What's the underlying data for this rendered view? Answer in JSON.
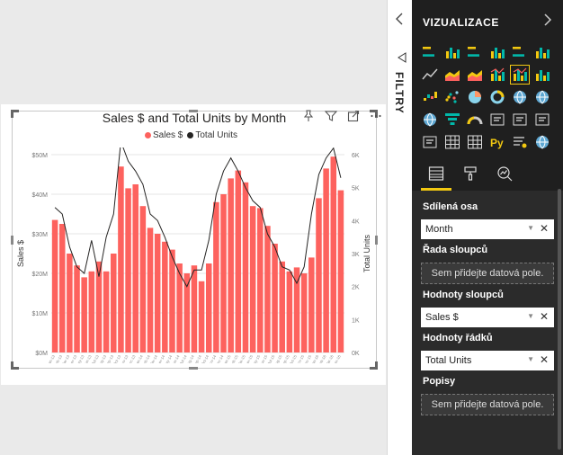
{
  "visual": {
    "title": "Sales $ and Total Units by Month",
    "legend": [
      {
        "name": "Sales $",
        "color": "#fd625e"
      },
      {
        "name": "Total Units",
        "color": "#252423"
      }
    ],
    "header_icons": [
      "pin-icon",
      "filter-icon",
      "focus-mode-icon",
      "more-options-icon"
    ]
  },
  "chart_data": {
    "type": "bar",
    "xlabel": "",
    "ylabel": "Sales $",
    "y2label": "Total Units",
    "ylim": [
      0,
      50
    ],
    "y2lim": [
      0,
      6
    ],
    "y_ticks": [
      "$0M",
      "$10M",
      "$20M",
      "$30M",
      "$40M",
      "$50M"
    ],
    "y2_ticks": [
      "0K",
      "1K",
      "2K",
      "3K",
      "4K",
      "5K",
      "6K"
    ],
    "categories": [
      "Jan-13",
      "Feb-13",
      "Mar-13",
      "Apr-13",
      "May-13",
      "Jun-13",
      "Jul-13",
      "Aug-13",
      "Sep-13",
      "Oct-13",
      "Nov-13",
      "Dec-13",
      "Jan-14",
      "Feb-14",
      "Mar-14",
      "Apr-14",
      "May-14",
      "Jun-14",
      "Jul-14",
      "Aug-14",
      "Sep-14",
      "Oct-14",
      "Nov-14",
      "Dec-14",
      "Jan-15",
      "Feb-15",
      "Mar-15",
      "Apr-15",
      "May-15",
      "Jun-15",
      "Jul-15",
      "Aug-15",
      "Sep-15",
      "Oct-15",
      "Nov-15",
      "Dec-15",
      "Jan-16",
      "Feb-16",
      "Mar-16",
      "Apr-16"
    ],
    "series": [
      {
        "name": "Sales $",
        "kind": "bar",
        "color": "#fd625e",
        "values": [
          33.5,
          32.5,
          25,
          22,
          19,
          20.5,
          23,
          20.5,
          25,
          47,
          41.5,
          42.5,
          37,
          31.5,
          30,
          28,
          26,
          22.5,
          20,
          22,
          18,
          22.5,
          38,
          40,
          44,
          46,
          43,
          37,
          36.5,
          32,
          27.5,
          23,
          20.5,
          21.5,
          20,
          24,
          39,
          46.5,
          49.5,
          41
        ]
      },
      {
        "name": "Total Units",
        "kind": "line",
        "color": "#252423",
        "values": [
          4.4,
          4.2,
          3.2,
          2.6,
          2.4,
          3.4,
          2.3,
          3.5,
          4.2,
          6.4,
          5.8,
          5.5,
          5.1,
          4.2,
          4.0,
          3.5,
          2.9,
          2.4,
          2.0,
          2.5,
          2.5,
          3.4,
          4.8,
          5.5,
          5.9,
          5.5,
          5.0,
          4.6,
          4.4,
          3.6,
          3.2,
          2.6,
          2.5,
          2.1,
          2.6,
          4.2,
          5.4,
          5.9,
          6.2,
          5.3
        ]
      }
    ]
  },
  "filters": {
    "label": "FILTRY"
  },
  "viz_pane": {
    "title": "VIZUALIZACE",
    "gallery_icons": [
      [
        "stacked-bar-icon",
        "stacked-column-icon",
        "clustered-bar-icon",
        "clustered-column-icon",
        "100-bar-icon",
        "100-column-icon"
      ],
      [
        "line-chart-icon",
        "area-chart-icon",
        "stacked-area-icon",
        "line-column-icon",
        "line-clustered-column-icon",
        "ribbon-chart-icon"
      ],
      [
        "waterfall-icon",
        "scatter-icon",
        "pie-chart-icon",
        "donut-chart-icon",
        "treemap-icon",
        "map-icon"
      ],
      [
        "filled-map-icon",
        "funnel-icon",
        "gauge-icon",
        "card-icon",
        "multi-row-card-icon",
        "kpi-icon"
      ],
      [
        "slicer-icon",
        "table-icon",
        "matrix-icon",
        "python-visual-icon",
        "qna-icon",
        "arcgis-icon"
      ]
    ],
    "python_label": "Py",
    "more_label": "...",
    "tabs": [
      "fields-tab-icon",
      "format-tab-icon",
      "analytics-tab-icon"
    ]
  },
  "wells": [
    {
      "label": "Sdílená osa",
      "value": "Month",
      "placeholder": ""
    },
    {
      "label": "Řada sloupců",
      "value": "",
      "placeholder": "Sem přidejte datová pole."
    },
    {
      "label": "Hodnoty sloupců",
      "value": "Sales $",
      "placeholder": ""
    },
    {
      "label": "Hodnoty řádků",
      "value": "Total Units",
      "placeholder": ""
    },
    {
      "label": "Popisy",
      "value": "",
      "placeholder": "Sem přidejte datová pole."
    }
  ]
}
